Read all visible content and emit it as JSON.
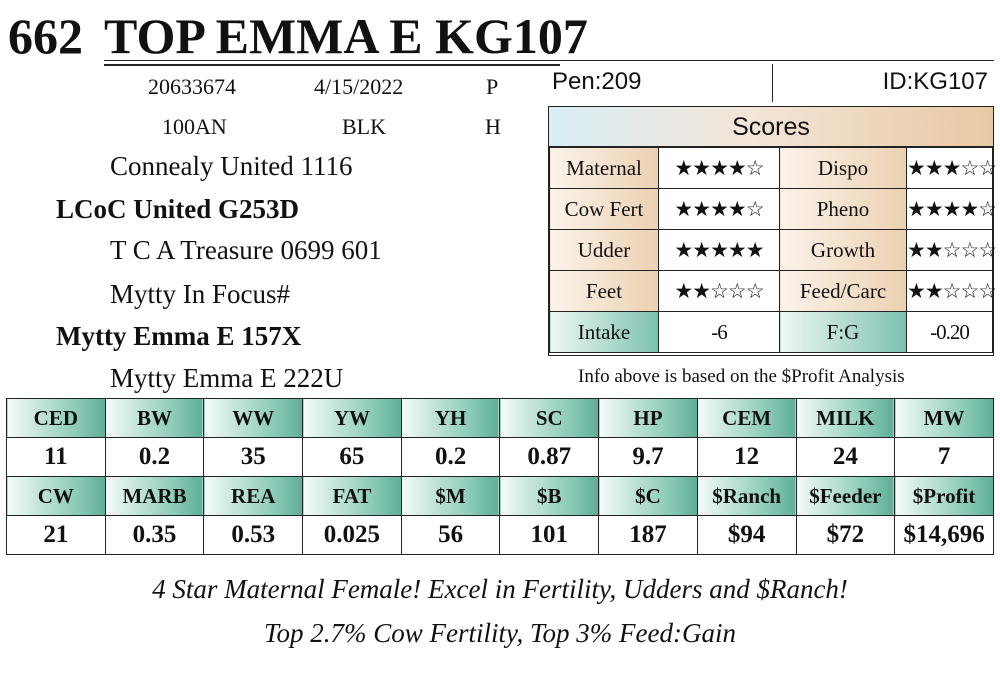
{
  "header": {
    "lot": "662",
    "name": "TOP EMMA E KG107"
  },
  "info": {
    "reg": "20633674",
    "dob": "4/15/2022",
    "p": "P",
    "breed": "100AN",
    "color": "BLK",
    "h": "H"
  },
  "pedigree": [
    {
      "name": "Connealy United 1116"
    },
    {
      "name": "LCoC United G253D"
    },
    {
      "name": "T C A Treasure 0699 601"
    },
    {
      "name": "Mytty In Focus#"
    },
    {
      "name": "Mytty Emma E 157X"
    },
    {
      "name": "Mytty Emma E 222U"
    }
  ],
  "pen": {
    "pen": "Pen:209",
    "id": "ID:KG107"
  },
  "scores": {
    "title": "Scores",
    "rows": [
      {
        "l1": "Maternal",
        "s1": "★★★★☆",
        "stars1": 4,
        "l2": "Dispo",
        "s2": "★★★☆☆",
        "stars2": 3
      },
      {
        "l1": "Cow Fert",
        "s1": "★★★★☆",
        "stars1": 4,
        "l2": "Pheno",
        "s2": "★★★★☆",
        "stars2": 4
      },
      {
        "l1": "Udder",
        "s1": "★★★★★",
        "stars1": 5,
        "l2": "Growth",
        "s2": "★★☆☆☆",
        "stars2": 2
      },
      {
        "l1": "Feet",
        "s1": "★★☆☆☆",
        "stars1": 2,
        "l2": "Feed/Carc",
        "s2": "★★☆☆☆",
        "stars2": 2
      }
    ],
    "intake_label": "Intake",
    "intake_value": "-6",
    "fg_label": "F:G",
    "fg_value": "-0.20"
  },
  "note": "Info above is based on the $Profit Analysis",
  "epd": {
    "row1": {
      "headers": [
        "CED",
        "BW",
        "WW",
        "YW",
        "YH",
        "SC",
        "HP",
        "CEM",
        "MILK",
        "MW"
      ],
      "values": [
        "11",
        "0.2",
        "35",
        "65",
        "0.2",
        "0.87",
        "9.7",
        "12",
        "24",
        "7"
      ]
    },
    "row2": {
      "headers": [
        "CW",
        "MARB",
        "REA",
        "FAT",
        "$M",
        "$B",
        "$C",
        "$Ranch",
        "$Feeder",
        "$Profit"
      ],
      "values": [
        "21",
        "0.35",
        "0.53",
        "0.025",
        "56",
        "101",
        "187",
        "$94",
        "$72",
        "$14,696"
      ]
    }
  },
  "tagline": {
    "line1": "4 Star Maternal Female! Excel in Fertility, Udders and $Ranch!",
    "line2": "Top 2.7% Cow Fertility, Top 3% Feed:Gain"
  },
  "colors": {
    "teal": "#5fae98",
    "tan": "#e9c8a4"
  }
}
